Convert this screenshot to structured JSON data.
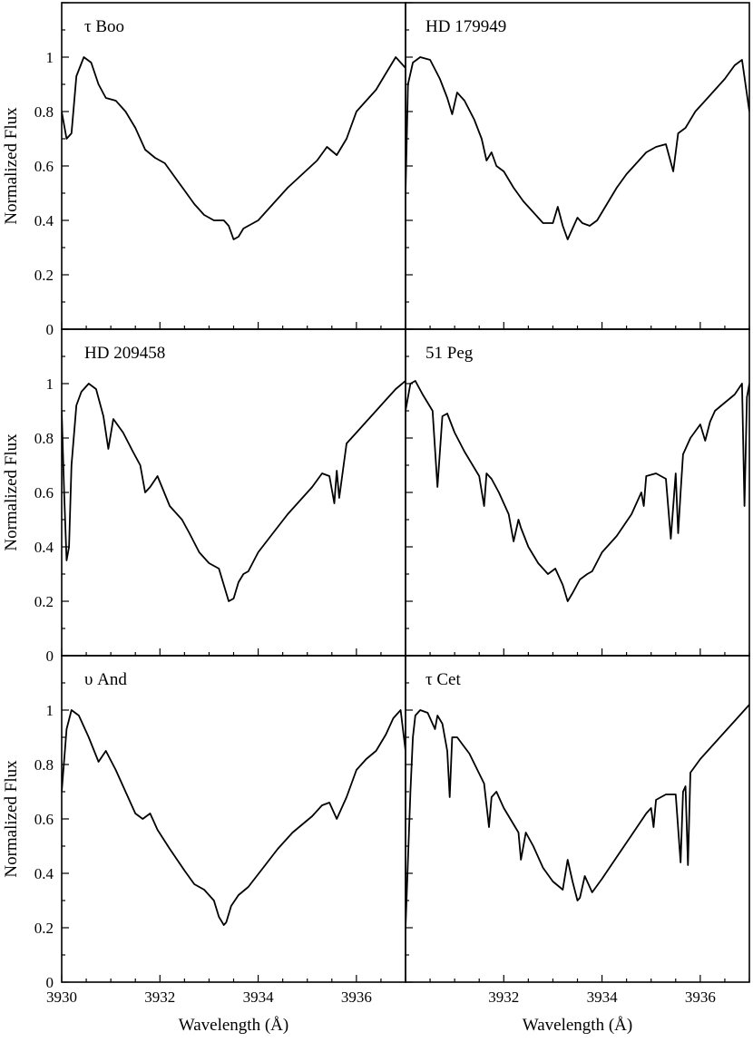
{
  "chart_data": {
    "type": "line",
    "xlabel": "Wavelength (Å)",
    "ylabel": "Normalized Flux",
    "xlim": [
      3930,
      3937
    ],
    "ylim": [
      0,
      1.2
    ],
    "x_ticks": [
      "3930",
      "3932",
      "3934",
      "3936"
    ],
    "x_ticks_right": [
      "3932",
      "3934",
      "3936"
    ],
    "y_ticks": [
      "0",
      "0.2",
      "0.4",
      "0.6",
      "0.8",
      "1"
    ],
    "grid": false,
    "panels": [
      {
        "label": "τ Boo",
        "x": [
          3930.0,
          3930.1,
          3930.2,
          3930.3,
          3930.45,
          3930.6,
          3930.75,
          3930.9,
          3931.1,
          3931.3,
          3931.5,
          3931.7,
          3931.9,
          3932.1,
          3932.3,
          3932.5,
          3932.7,
          3932.9,
          3933.1,
          3933.3,
          3933.4,
          3933.5,
          3933.6,
          3933.7,
          3933.8,
          3934.0,
          3934.3,
          3934.6,
          3934.9,
          3935.2,
          3935.4,
          3935.6,
          3935.8,
          3936.0,
          3936.2,
          3936.4,
          3936.6,
          3936.8,
          3937.0
        ],
        "y": [
          0.8,
          0.7,
          0.72,
          0.93,
          1.0,
          0.98,
          0.9,
          0.85,
          0.84,
          0.8,
          0.74,
          0.66,
          0.63,
          0.61,
          0.56,
          0.51,
          0.46,
          0.42,
          0.4,
          0.4,
          0.38,
          0.33,
          0.34,
          0.37,
          0.38,
          0.4,
          0.46,
          0.52,
          0.57,
          0.62,
          0.67,
          0.64,
          0.7,
          0.8,
          0.84,
          0.88,
          0.94,
          1.0,
          0.96
        ]
      },
      {
        "label": "HD 179949",
        "x": [
          3930.0,
          3930.05,
          3930.15,
          3930.3,
          3930.5,
          3930.7,
          3930.85,
          3930.95,
          3931.05,
          3931.2,
          3931.4,
          3931.55,
          3931.65,
          3931.75,
          3931.85,
          3932.0,
          3932.2,
          3932.4,
          3932.6,
          3932.8,
          3933.0,
          3933.1,
          3933.2,
          3933.3,
          3933.4,
          3933.5,
          3933.6,
          3933.75,
          3933.9,
          3934.1,
          3934.3,
          3934.5,
          3934.7,
          3934.9,
          3935.1,
          3935.3,
          3935.45,
          3935.55,
          3935.7,
          3935.9,
          3936.1,
          3936.3,
          3936.5,
          3936.7,
          3936.85,
          3937.0
        ],
        "y": [
          0.5,
          0.9,
          0.98,
          1.0,
          0.99,
          0.92,
          0.85,
          0.79,
          0.87,
          0.84,
          0.77,
          0.7,
          0.62,
          0.65,
          0.6,
          0.58,
          0.52,
          0.47,
          0.43,
          0.39,
          0.39,
          0.45,
          0.38,
          0.33,
          0.37,
          0.41,
          0.39,
          0.38,
          0.4,
          0.46,
          0.52,
          0.57,
          0.61,
          0.65,
          0.67,
          0.68,
          0.58,
          0.72,
          0.74,
          0.8,
          0.84,
          0.88,
          0.92,
          0.97,
          0.99,
          0.8
        ]
      },
      {
        "label": "HD 209458",
        "x": [
          3930.0,
          3930.05,
          3930.1,
          3930.15,
          3930.2,
          3930.3,
          3930.4,
          3930.55,
          3930.7,
          3930.85,
          3930.95,
          3931.05,
          3931.25,
          3931.45,
          3931.6,
          3931.7,
          3931.8,
          3931.95,
          3932.2,
          3932.45,
          3932.6,
          3932.8,
          3933.0,
          3933.2,
          3933.3,
          3933.4,
          3933.5,
          3933.6,
          3933.7,
          3933.8,
          3934.0,
          3934.3,
          3934.6,
          3934.9,
          3935.1,
          3935.3,
          3935.45,
          3935.55,
          3935.6,
          3935.65,
          3935.8,
          3936.0,
          3936.2,
          3936.4,
          3936.6,
          3936.8,
          3937.0
        ],
        "y": [
          0.9,
          0.6,
          0.35,
          0.4,
          0.7,
          0.92,
          0.97,
          1.0,
          0.98,
          0.88,
          0.76,
          0.87,
          0.82,
          0.75,
          0.7,
          0.6,
          0.62,
          0.66,
          0.55,
          0.5,
          0.45,
          0.38,
          0.34,
          0.32,
          0.26,
          0.2,
          0.21,
          0.27,
          0.3,
          0.31,
          0.38,
          0.45,
          0.52,
          0.58,
          0.62,
          0.67,
          0.66,
          0.56,
          0.68,
          0.58,
          0.78,
          0.82,
          0.86,
          0.9,
          0.94,
          0.98,
          1.01
        ]
      },
      {
        "label": "51 Peg",
        "x": [
          3930.0,
          3930.1,
          3930.2,
          3930.35,
          3930.55,
          3930.65,
          3930.75,
          3930.85,
          3931.0,
          3931.2,
          3931.5,
          3931.6,
          3931.65,
          3931.75,
          3931.9,
          3932.1,
          3932.2,
          3932.3,
          3932.35,
          3932.5,
          3932.7,
          3932.9,
          3933.05,
          3933.2,
          3933.3,
          3933.4,
          3933.55,
          3933.7,
          3933.8,
          3934.0,
          3934.3,
          3934.6,
          3934.8,
          3934.85,
          3934.9,
          3935.1,
          3935.3,
          3935.4,
          3935.5,
          3935.55,
          3935.6,
          3935.65,
          3935.8,
          3936.0,
          3936.1,
          3936.2,
          3936.3,
          3936.5,
          3936.7,
          3936.85,
          3936.9,
          3936.95,
          3937.0
        ],
        "y": [
          0.9,
          1.0,
          1.01,
          0.96,
          0.9,
          0.62,
          0.88,
          0.89,
          0.82,
          0.75,
          0.66,
          0.55,
          0.67,
          0.65,
          0.6,
          0.52,
          0.42,
          0.5,
          0.47,
          0.4,
          0.34,
          0.3,
          0.32,
          0.26,
          0.2,
          0.23,
          0.28,
          0.3,
          0.31,
          0.38,
          0.44,
          0.52,
          0.6,
          0.55,
          0.66,
          0.67,
          0.65,
          0.43,
          0.67,
          0.45,
          0.6,
          0.74,
          0.8,
          0.85,
          0.79,
          0.86,
          0.9,
          0.93,
          0.96,
          1.0,
          0.55,
          0.95,
          1.0
        ]
      },
      {
        "label": "υ And",
        "x": [
          3930.0,
          3930.1,
          3930.2,
          3930.35,
          3930.55,
          3930.75,
          3930.9,
          3931.1,
          3931.3,
          3931.5,
          3931.65,
          3931.8,
          3931.95,
          3932.2,
          3932.5,
          3932.7,
          3932.9,
          3933.1,
          3933.2,
          3933.3,
          3933.35,
          3933.45,
          3933.6,
          3933.8,
          3934.1,
          3934.4,
          3934.7,
          3934.9,
          3935.1,
          3935.3,
          3935.45,
          3935.6,
          3935.8,
          3936.0,
          3936.2,
          3936.4,
          3936.6,
          3936.75,
          3936.9,
          3937.0
        ],
        "y": [
          0.7,
          0.93,
          1.0,
          0.98,
          0.9,
          0.81,
          0.85,
          0.78,
          0.7,
          0.62,
          0.6,
          0.62,
          0.56,
          0.49,
          0.41,
          0.36,
          0.34,
          0.3,
          0.24,
          0.21,
          0.22,
          0.28,
          0.32,
          0.35,
          0.42,
          0.49,
          0.55,
          0.58,
          0.61,
          0.65,
          0.66,
          0.6,
          0.68,
          0.78,
          0.82,
          0.85,
          0.91,
          0.97,
          1.0,
          0.85
        ]
      },
      {
        "label": "τ Cet",
        "x": [
          3930.0,
          3930.05,
          3930.1,
          3930.15,
          3930.2,
          3930.3,
          3930.45,
          3930.6,
          3930.65,
          3930.75,
          3930.85,
          3930.9,
          3930.95,
          3931.05,
          3931.3,
          3931.6,
          3931.7,
          3931.75,
          3931.85,
          3932.0,
          3932.3,
          3932.35,
          3932.45,
          3932.6,
          3932.8,
          3933.0,
          3933.2,
          3933.3,
          3933.4,
          3933.5,
          3933.55,
          3933.65,
          3933.8,
          3934.0,
          3934.3,
          3934.6,
          3934.9,
          3935.0,
          3935.05,
          3935.1,
          3935.3,
          3935.5,
          3935.6,
          3935.65,
          3935.7,
          3935.75,
          3935.8,
          3936.0,
          3936.2,
          3936.3,
          3936.5,
          3936.7,
          3936.85,
          3937.0
        ],
        "y": [
          0.2,
          0.45,
          0.7,
          0.9,
          0.98,
          1.0,
          0.99,
          0.93,
          0.98,
          0.95,
          0.85,
          0.68,
          0.9,
          0.9,
          0.84,
          0.73,
          0.57,
          0.68,
          0.7,
          0.64,
          0.55,
          0.45,
          0.55,
          0.5,
          0.42,
          0.37,
          0.34,
          0.45,
          0.37,
          0.3,
          0.31,
          0.39,
          0.33,
          0.38,
          0.46,
          0.54,
          0.62,
          0.64,
          0.57,
          0.67,
          0.69,
          0.69,
          0.44,
          0.7,
          0.72,
          0.43,
          0.77,
          0.82,
          0.86,
          0.88,
          0.92,
          0.96,
          0.99,
          1.02
        ]
      }
    ]
  }
}
